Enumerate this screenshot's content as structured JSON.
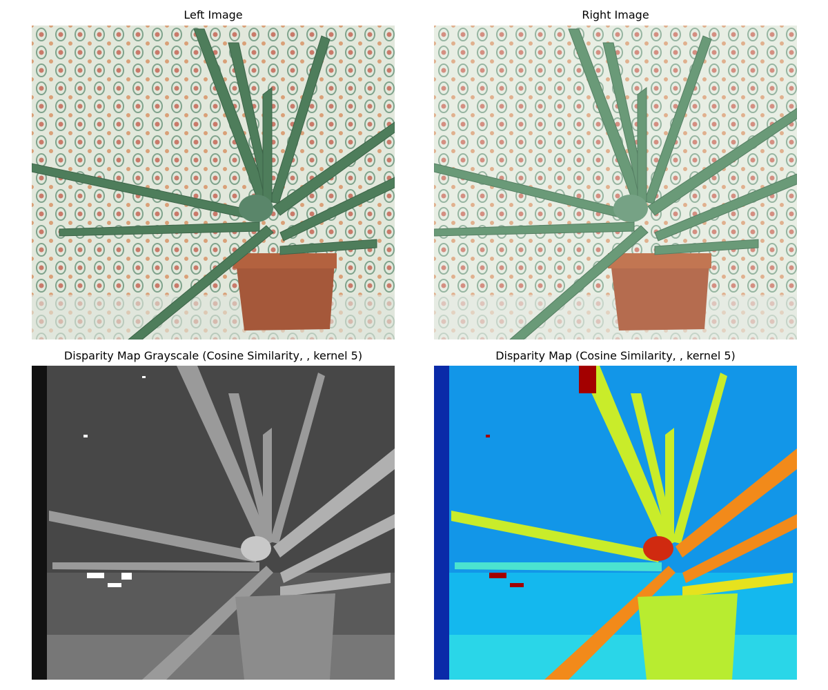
{
  "panels": {
    "top_left": {
      "title": "Left Image"
    },
    "top_right": {
      "title": "Right Image"
    },
    "bottom_left": {
      "title": "Disparity Map Grayscale (Cosine Similarity, , kernel 5)"
    },
    "bottom_right": {
      "title": "Disparity Map (Cosine Similarity, , kernel 5)"
    }
  },
  "colors": {
    "background": "#ffffff",
    "wallpaper": "#dfe6d8",
    "leaf": "#4e7d5b",
    "pot": "#a5583a",
    "gray_bg": "#4a4a4a",
    "jet_bg": "#1296e8"
  }
}
